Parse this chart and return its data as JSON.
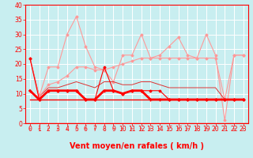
{
  "xlabel": "Vent moyen/en rafales ( km/h )",
  "xlim": [
    -0.5,
    23.5
  ],
  "ylim": [
    0,
    40
  ],
  "yticks": [
    0,
    5,
    10,
    15,
    20,
    25,
    30,
    35,
    40
  ],
  "xticks": [
    0,
    1,
    2,
    3,
    4,
    5,
    6,
    7,
    8,
    9,
    10,
    11,
    12,
    13,
    14,
    15,
    16,
    17,
    18,
    19,
    20,
    21,
    22,
    23
  ],
  "bg_color": "#c8eef0",
  "grid_color": "#ffffff",
  "lines": [
    {
      "y": [
        22,
        8,
        11,
        11,
        11,
        11,
        8,
        8,
        19,
        11,
        10,
        11,
        11,
        11,
        11,
        8,
        8,
        8,
        8,
        8,
        8,
        8,
        8,
        8
      ],
      "color": "#ff0000",
      "lw": 0.8,
      "marker": "D",
      "ms": 1.5,
      "zorder": 4
    },
    {
      "y": [
        11,
        8,
        11,
        11,
        11,
        11,
        8,
        8,
        11,
        11,
        10,
        11,
        11,
        8,
        8,
        8,
        8,
        8,
        8,
        8,
        8,
        8,
        8,
        8
      ],
      "color": "#ff0000",
      "lw": 2.0,
      "marker": "+",
      "ms": 3,
      "zorder": 5
    },
    {
      "y": [
        8,
        8,
        8,
        8,
        8,
        8,
        8,
        8,
        8,
        8,
        8,
        8,
        8,
        8,
        8,
        8,
        8,
        8,
        8,
        8,
        8,
        8,
        8,
        8
      ],
      "color": "#ff0000",
      "lw": 1.0,
      "marker": "None",
      "ms": 0,
      "zorder": 3
    },
    {
      "y": [
        22,
        9,
        12,
        12,
        13,
        14,
        13,
        12,
        14,
        14,
        13,
        13,
        14,
        14,
        13,
        12,
        12,
        12,
        12,
        12,
        12,
        8,
        8,
        8
      ],
      "color": "#dd3333",
      "lw": 0.7,
      "marker": "None",
      "ms": 0,
      "zorder": 3
    },
    {
      "y": [
        22,
        9,
        13,
        14,
        16,
        19,
        19,
        18,
        18,
        19,
        20,
        21,
        22,
        22,
        22,
        22,
        22,
        22,
        22,
        22,
        22,
        8,
        23,
        23
      ],
      "color": "#ff9999",
      "lw": 0.8,
      "marker": "D",
      "ms": 1.5,
      "zorder": 3
    },
    {
      "y": [
        22,
        9,
        19,
        19,
        30,
        36,
        26,
        19,
        18,
        14,
        23,
        23,
        30,
        22,
        23,
        26,
        29,
        23,
        22,
        30,
        23,
        1,
        23,
        23
      ],
      "color": "#ff9999",
      "lw": 0.8,
      "marker": "D",
      "ms": 1.5,
      "zorder": 2
    }
  ],
  "xlabel_color": "#ff0000",
  "xlabel_fontsize": 7,
  "tick_fontsize": 5.5,
  "tick_color": "#ff0000",
  "axis_color": "#ff0000",
  "arrow_color": "#ff4444"
}
